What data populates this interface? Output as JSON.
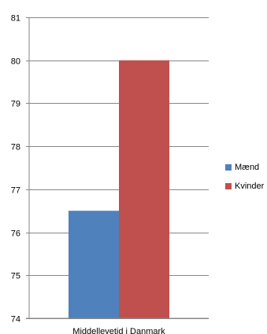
{
  "chart_data": {
    "type": "bar",
    "categories": [
      "Middellevetid i Danmark"
    ],
    "series": [
      {
        "name": "Mænd",
        "values": [
          76.5
        ],
        "color": "#4f81bd"
      },
      {
        "name": "Kvinder",
        "values": [
          80
        ],
        "color": "#c0504d"
      }
    ],
    "ylim": [
      74,
      81
    ],
    "yticks": [
      74,
      75,
      76,
      77,
      78,
      79,
      80,
      81
    ],
    "grid": true,
    "legend_position": "right",
    "title": "",
    "xlabel": "",
    "ylabel": ""
  }
}
